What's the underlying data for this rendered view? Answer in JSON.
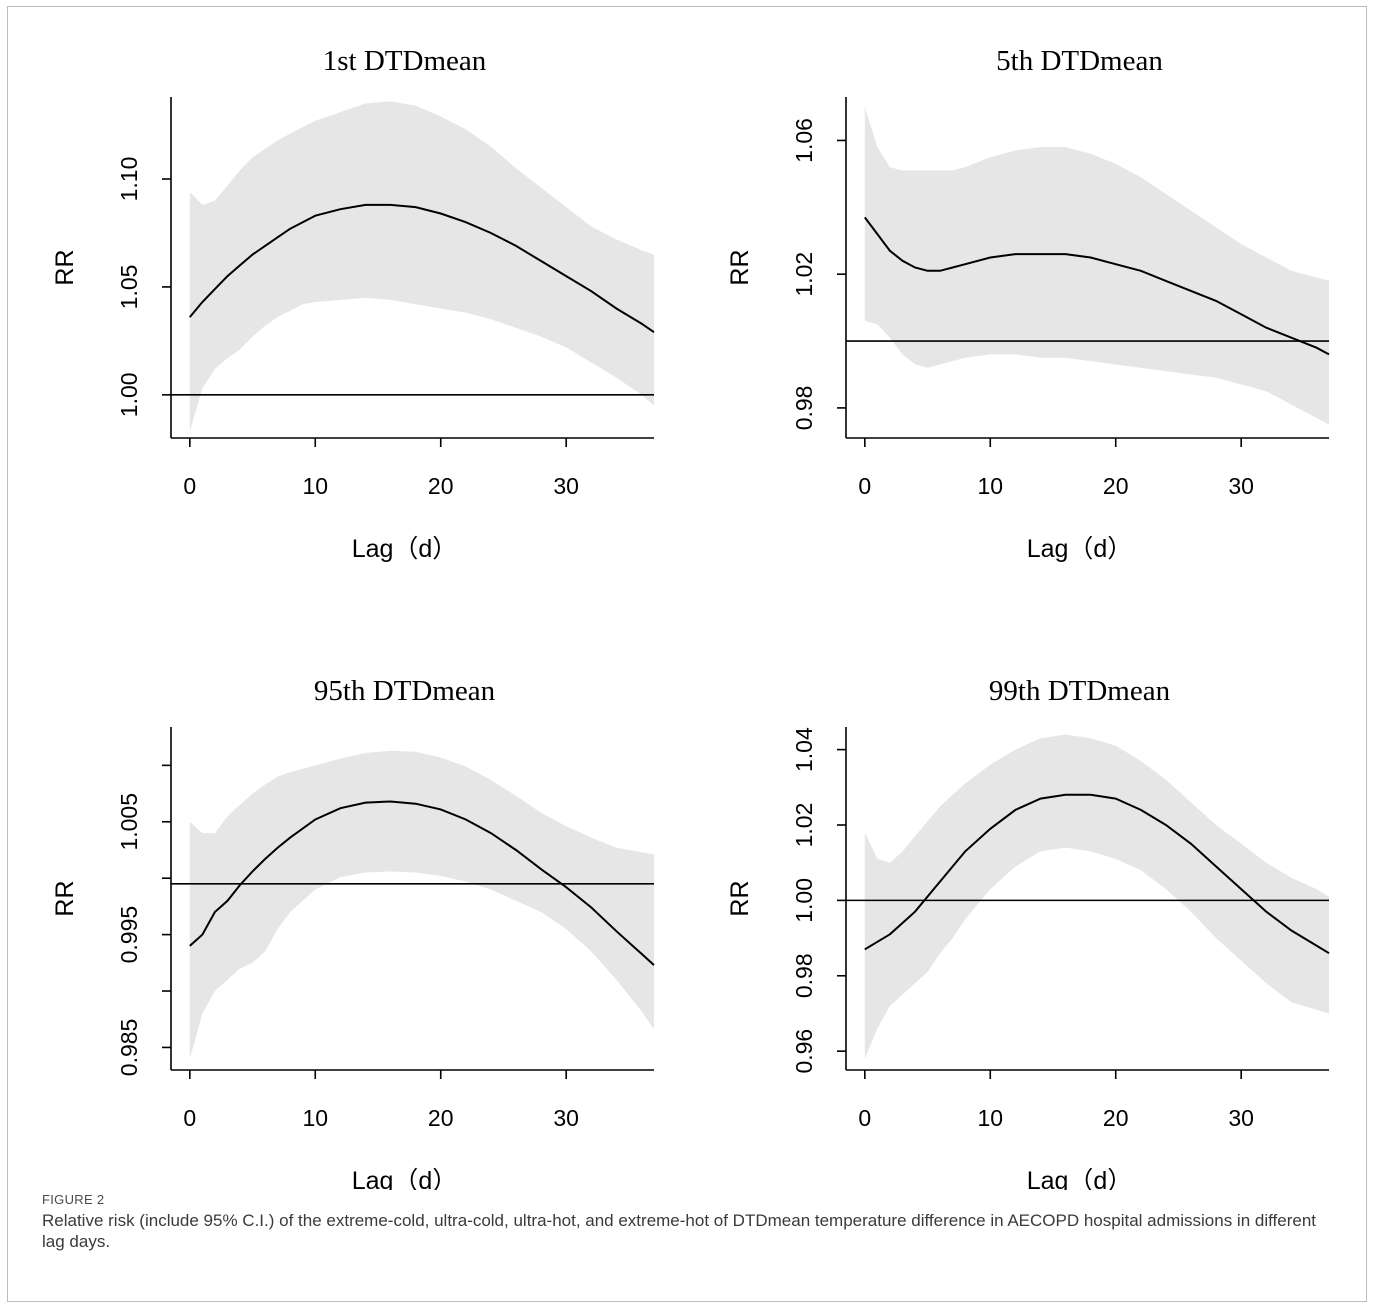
{
  "figure": {
    "label": "FIGURE 2",
    "caption": "Relative risk (include 95% C.I.) of the extreme-cold, ultra-cold, ultra-hot, and extreme-hot of DTDmean temperature difference in AECOPD hospital admissions in different lag days."
  },
  "chart_data": [
    {
      "type": "line",
      "title": "1st DTDmean",
      "xlabel": "Lag（d）",
      "ylabel": "RR",
      "xlim": [
        -1.5,
        37
      ],
      "ylim": [
        0.98,
        1.138
      ],
      "xticks": [
        0,
        10,
        20,
        30
      ],
      "yticks": [
        1.0,
        1.05,
        1.1
      ],
      "ytick_labels": [
        "1.00",
        "1.05",
        "1.10"
      ],
      "reference_line": 1.0,
      "series": [
        {
          "x": [
            0,
            1,
            2,
            3,
            4,
            5,
            6,
            7,
            8,
            9,
            10,
            12,
            14,
            16,
            18,
            20,
            22,
            24,
            26,
            28,
            30,
            32,
            34,
            36,
            37
          ],
          "rr": [
            1.036,
            1.043,
            1.049,
            1.055,
            1.06,
            1.065,
            1.069,
            1.073,
            1.077,
            1.08,
            1.083,
            1.086,
            1.088,
            1.088,
            1.087,
            1.084,
            1.08,
            1.075,
            1.069,
            1.062,
            1.055,
            1.048,
            1.04,
            1.033,
            1.029
          ],
          "upper": [
            1.094,
            1.088,
            1.09,
            1.097,
            1.104,
            1.11,
            1.114,
            1.118,
            1.121,
            1.124,
            1.127,
            1.131,
            1.135,
            1.136,
            1.134,
            1.129,
            1.123,
            1.115,
            1.105,
            1.096,
            1.087,
            1.078,
            1.072,
            1.067,
            1.065
          ],
          "lower": [
            0.983,
            1.003,
            1.012,
            1.017,
            1.021,
            1.027,
            1.032,
            1.036,
            1.039,
            1.042,
            1.043,
            1.044,
            1.045,
            1.044,
            1.042,
            1.04,
            1.038,
            1.035,
            1.031,
            1.027,
            1.022,
            1.015,
            1.008,
            1.0,
            0.995
          ]
        }
      ]
    },
    {
      "type": "line",
      "title": "5th DTDmean",
      "xlabel": "Lag（d）",
      "ylabel": "RR",
      "xlim": [
        -1.5,
        37
      ],
      "ylim": [
        0.971,
        1.073
      ],
      "xticks": [
        0,
        10,
        20,
        30
      ],
      "yticks": [
        0.98,
        1.02,
        1.06
      ],
      "ytick_labels": [
        "0.98",
        "1.02",
        "1.06"
      ],
      "reference_line": 1.0,
      "series": [
        {
          "x": [
            0,
            1,
            2,
            3,
            4,
            5,
            6,
            7,
            8,
            10,
            12,
            14,
            16,
            18,
            20,
            22,
            24,
            26,
            28,
            30,
            32,
            34,
            36,
            37
          ],
          "rr": [
            1.037,
            1.032,
            1.027,
            1.024,
            1.022,
            1.021,
            1.021,
            1.022,
            1.023,
            1.025,
            1.026,
            1.026,
            1.026,
            1.025,
            1.023,
            1.021,
            1.018,
            1.015,
            1.012,
            1.008,
            1.004,
            1.001,
            0.998,
            0.996
          ],
          "upper": [
            1.07,
            1.058,
            1.052,
            1.051,
            1.051,
            1.051,
            1.051,
            1.051,
            1.052,
            1.055,
            1.057,
            1.058,
            1.058,
            1.056,
            1.053,
            1.049,
            1.044,
            1.039,
            1.034,
            1.029,
            1.025,
            1.021,
            1.019,
            1.018
          ],
          "lower": [
            1.006,
            1.005,
            1.001,
            0.996,
            0.993,
            0.992,
            0.993,
            0.994,
            0.995,
            0.996,
            0.996,
            0.995,
            0.995,
            0.994,
            0.993,
            0.992,
            0.991,
            0.99,
            0.989,
            0.987,
            0.985,
            0.981,
            0.977,
            0.975
          ]
        }
      ]
    },
    {
      "type": "line",
      "title": "95th DTDmean",
      "xlabel": "Lag（d）",
      "ylabel": "RR",
      "xlim": [
        -1.5,
        37
      ],
      "ylim": [
        0.983,
        1.0134
      ],
      "xticks": [
        0,
        10,
        20,
        30
      ],
      "yticks": [
        0.985,
        0.99,
        0.995,
        1.0,
        1.005,
        1.01
      ],
      "ytick_labels": [
        "0.985",
        "",
        "0.995",
        "",
        "1.005",
        ""
      ],
      "reference_line": 0.9995,
      "series": [
        {
          "x": [
            0,
            1,
            2,
            3,
            4,
            5,
            6,
            7,
            8,
            10,
            12,
            14,
            16,
            18,
            20,
            22,
            24,
            26,
            28,
            30,
            32,
            34,
            36,
            37
          ],
          "rr": [
            0.994,
            0.995,
            0.997,
            0.998,
            0.9994,
            1.0006,
            1.0017,
            1.0027,
            1.0036,
            1.0052,
            1.0062,
            1.0067,
            1.0068,
            1.0066,
            1.0061,
            1.0052,
            1.004,
            1.0025,
            1.0008,
            0.9992,
            0.9974,
            0.9953,
            0.9933,
            0.9923
          ],
          "upper": [
            1.005,
            1.004,
            1.004,
            1.0055,
            1.0065,
            1.0075,
            1.0083,
            1.009,
            1.0094,
            1.01,
            1.0106,
            1.0111,
            1.0113,
            1.0112,
            1.0107,
            1.0099,
            1.0087,
            1.0073,
            1.0058,
            1.0046,
            1.0036,
            1.0027,
            1.0023,
            1.0021
          ],
          "lower": [
            0.984,
            0.988,
            0.99,
            0.991,
            0.992,
            0.9925,
            0.9935,
            0.9955,
            0.997,
            0.999,
            1.0001,
            1.0005,
            1.0006,
            1.0005,
            1.0002,
            0.9997,
            0.999,
            0.998,
            0.997,
            0.9955,
            0.9935,
            0.991,
            0.9882,
            0.9866
          ]
        }
      ]
    },
    {
      "type": "line",
      "title": "99th DTDmean",
      "xlabel": "Lag（d）",
      "ylabel": "RR",
      "xlim": [
        -1.5,
        37
      ],
      "ylim": [
        0.955,
        1.046
      ],
      "xticks": [
        0,
        10,
        20,
        30
      ],
      "yticks": [
        0.96,
        0.98,
        1.0,
        1.02,
        1.04
      ],
      "ytick_labels": [
        "0.96",
        "0.98",
        "1.00",
        "1.02",
        "1.04"
      ],
      "reference_line": 1.0,
      "series": [
        {
          "x": [
            0,
            1,
            2,
            3,
            4,
            5,
            6,
            7,
            8,
            10,
            12,
            14,
            16,
            18,
            20,
            22,
            24,
            26,
            28,
            30,
            32,
            34,
            36,
            37
          ],
          "rr": [
            0.987,
            0.989,
            0.991,
            0.994,
            0.997,
            1.001,
            1.005,
            1.009,
            1.013,
            1.019,
            1.024,
            1.027,
            1.028,
            1.028,
            1.027,
            1.024,
            1.02,
            1.015,
            1.009,
            1.003,
            0.997,
            0.992,
            0.988,
            0.986
          ],
          "upper": [
            1.018,
            1.011,
            1.01,
            1.013,
            1.017,
            1.021,
            1.025,
            1.028,
            1.031,
            1.036,
            1.04,
            1.043,
            1.044,
            1.043,
            1.041,
            1.037,
            1.032,
            1.026,
            1.02,
            1.015,
            1.01,
            1.006,
            1.003,
            1.001
          ],
          "lower": [
            0.958,
            0.966,
            0.972,
            0.975,
            0.978,
            0.981,
            0.986,
            0.99,
            0.995,
            1.003,
            1.009,
            1.013,
            1.014,
            1.013,
            1.011,
            1.008,
            1.003,
            0.997,
            0.99,
            0.984,
            0.978,
            0.973,
            0.971,
            0.97
          ]
        }
      ]
    }
  ]
}
